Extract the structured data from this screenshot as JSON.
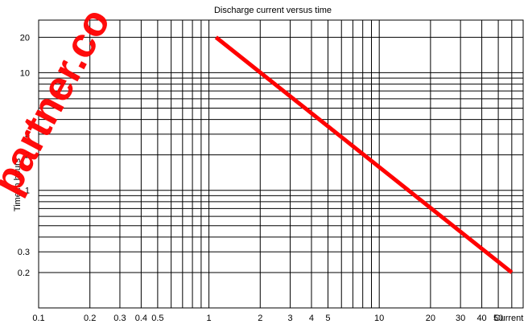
{
  "chart_data": {
    "type": "line",
    "title": "Discharge current versus time",
    "xlabel": "Current",
    "ylabel": "Time in hours",
    "x_scale": "log",
    "y_scale": "log",
    "xlim": [
      0.1,
      70
    ],
    "ylim": [
      0.1,
      28
    ],
    "x_tick_labels": [
      "0.1",
      "0.2",
      "0.3",
      "0.4",
      "0.5",
      "1",
      "2",
      "3",
      "4",
      "5",
      "10",
      "20",
      "30",
      "40",
      "50"
    ],
    "y_tick_labels": [
      "0.2",
      "0.3",
      "1",
      "2",
      "3",
      "10",
      "20"
    ],
    "grid": true,
    "series": [
      {
        "x": [
          1.1,
          60
        ],
        "y": [
          20,
          0.2
        ],
        "color": "#ff0000"
      }
    ],
    "watermark": {
      "text": "partner.co",
      "color": "#ff0000"
    }
  }
}
